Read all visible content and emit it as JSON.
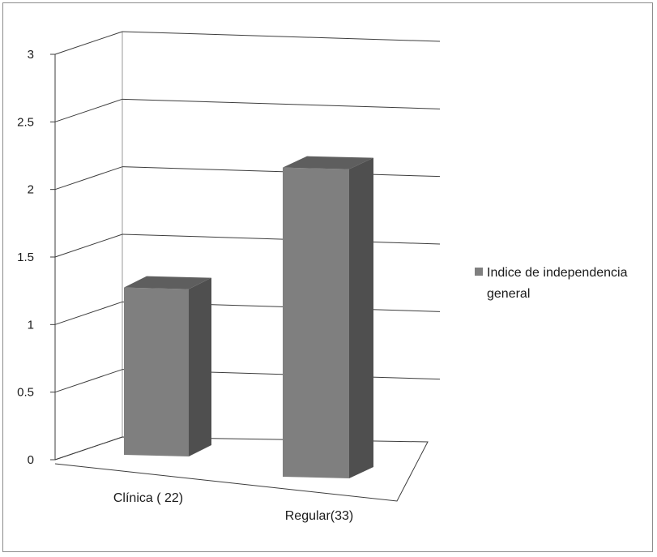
{
  "chart_data": {
    "type": "bar",
    "style": "3d-column",
    "categories": [
      "Clínica ( 22)",
      "Regular(33)"
    ],
    "series": [
      {
        "name": "Indice de independencia general",
        "values": [
          1.25,
          2.3
        ]
      }
    ],
    "ylim": [
      0,
      3
    ],
    "yticks": [
      "0",
      "0.5",
      "1",
      "1.5",
      "2",
      "2.5",
      "3"
    ],
    "grid": true,
    "legend": {
      "position": "right",
      "label_lines": [
        "Indice de independencia",
        "general"
      ]
    },
    "colors": {
      "bar_front": "#7f7f7f",
      "bar_top": "#5e5e5e",
      "bar_side": "#4f4f4f",
      "gridline": "#3c3c3c",
      "legend_swatch": "#7f7f7f"
    }
  }
}
